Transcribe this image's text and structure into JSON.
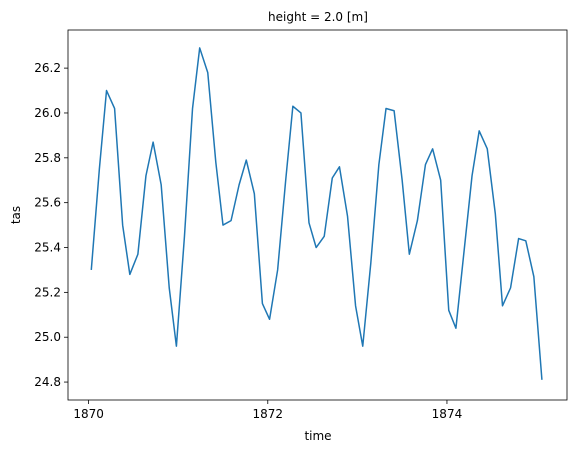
{
  "chart_data": {
    "type": "line",
    "title": "height = 2.0 [m]",
    "x_label": "time",
    "y_label": "tas",
    "x": [
      1870.03,
      1870.12,
      1870.2,
      1870.29,
      1870.38,
      1870.46,
      1870.55,
      1870.64,
      1870.72,
      1870.81,
      1870.9,
      1870.98,
      1871.07,
      1871.16,
      1871.24,
      1871.33,
      1871.42,
      1871.5,
      1871.59,
      1871.68,
      1871.76,
      1871.85,
      1871.94,
      1872.02,
      1872.11,
      1872.2,
      1872.28,
      1872.37,
      1872.46,
      1872.54,
      1872.63,
      1872.72,
      1872.8,
      1872.89,
      1872.98,
      1873.06,
      1873.15,
      1873.24,
      1873.32,
      1873.41,
      1873.5,
      1873.58,
      1873.67,
      1873.76,
      1873.84,
      1873.93,
      1874.02,
      1874.1,
      1874.19,
      1874.28,
      1874.36,
      1874.45,
      1874.54,
      1874.62,
      1874.71,
      1874.8,
      1874.88,
      1874.97,
      1875.06
    ],
    "series": [
      {
        "color": "#1f77b4",
        "values": [
          25.3,
          25.75,
          26.1,
          26.02,
          25.5,
          25.28,
          25.37,
          25.72,
          25.87,
          25.68,
          25.22,
          24.96,
          25.45,
          26.02,
          26.29,
          26.18,
          25.78,
          25.5,
          25.52,
          25.68,
          25.79,
          25.64,
          25.15,
          25.08,
          25.3,
          25.7,
          26.03,
          26.0,
          25.51,
          25.4,
          25.45,
          25.71,
          25.76,
          25.54,
          25.14,
          24.96,
          25.33,
          25.77,
          26.02,
          26.01,
          25.7,
          25.37,
          25.52,
          25.77,
          25.84,
          25.7,
          25.12,
          25.04,
          25.38,
          25.72,
          25.92,
          25.84,
          25.55,
          25.14,
          25.22,
          25.44,
          25.43,
          25.27,
          24.81
        ]
      }
    ],
    "xlim": [
      1869.77,
      1875.34
    ],
    "xticks": [
      1870,
      1872,
      1874
    ],
    "ylim": [
      24.72,
      26.37
    ],
    "yticks": [
      24.8,
      {
        "value": 25,
        "label": "25.0"
      },
      25.2,
      25.4,
      25.6,
      25.8,
      {
        "value": 26,
        "label": "26.0"
      },
      26.2
    ],
    "grid": false
  }
}
